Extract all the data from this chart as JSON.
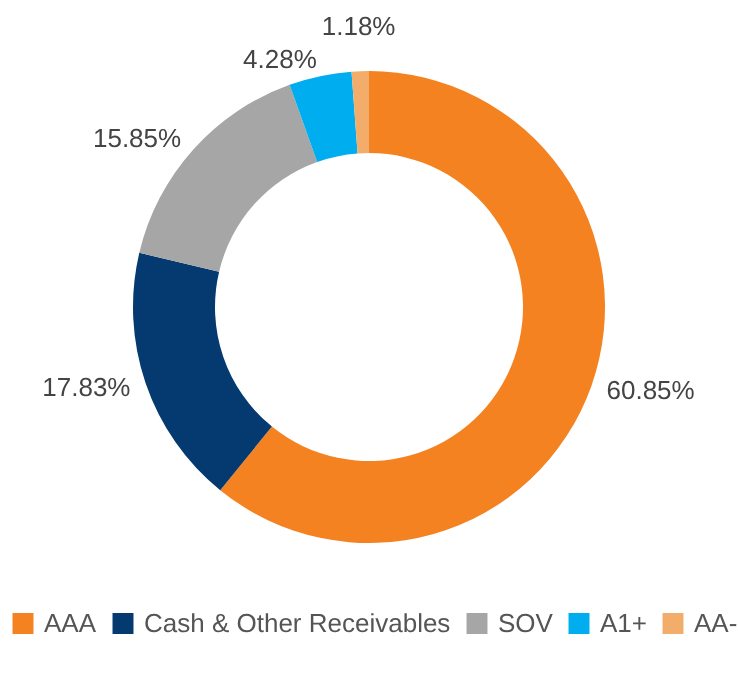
{
  "chart_data": {
    "type": "donut",
    "categories": [
      "AAA",
      "Cash & Other Receivables",
      "SOV",
      "A1+",
      "AA-"
    ],
    "values": [
      60.85,
      17.83,
      15.85,
      4.28,
      1.18
    ],
    "colors": [
      "#f58220",
      "#043a6f",
      "#a6a6a6",
      "#00adef",
      "#f2ad6b"
    ],
    "value_labels": [
      "60.85%",
      "17.83%",
      "15.85%",
      "4.28%",
      "1.18%"
    ],
    "legend": "bottom"
  }
}
